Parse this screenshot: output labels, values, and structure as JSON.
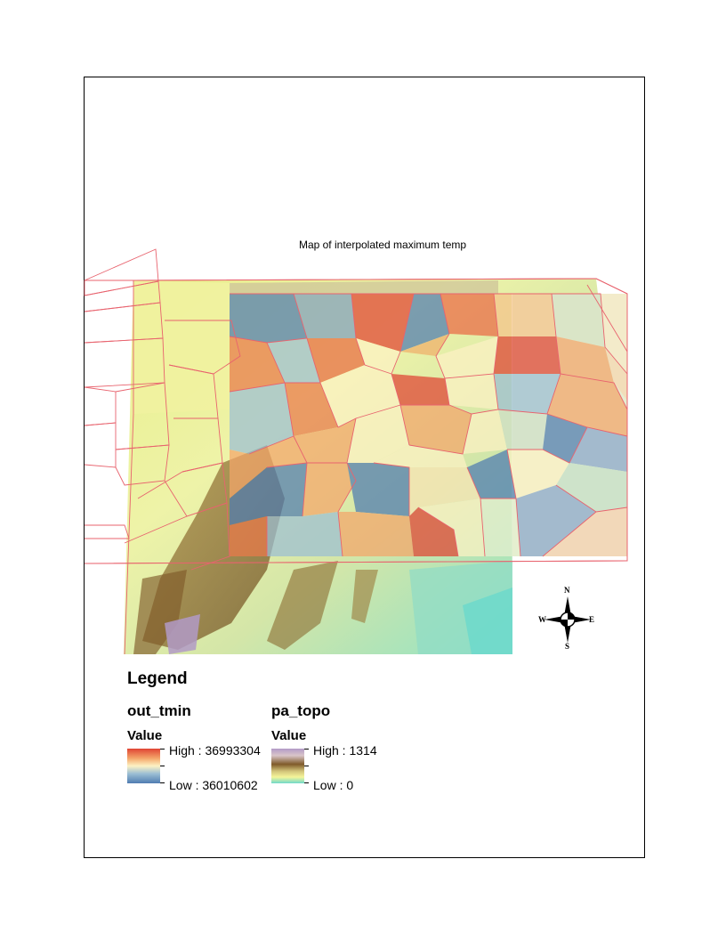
{
  "map": {
    "title": "Map of interpolated maximum temp"
  },
  "legend": {
    "title": "Legend",
    "layers": [
      {
        "name": "out_tmin",
        "value_label": "Value",
        "high_label": "High : 36993304",
        "low_label": "Low : 36010602",
        "ramp_colors": [
          "#e04433",
          "#f4a66a",
          "#fdf2c4",
          "#9cbfd4",
          "#4f7cb1"
        ]
      },
      {
        "name": "pa_topo",
        "value_label": "Value",
        "high_label": "High : 1314",
        "low_label": "Low : 0",
        "ramp_colors": [
          "#b29ac7",
          "#7f5a2a",
          "#f5f59a",
          "#6fd9cb"
        ]
      }
    ]
  },
  "north_arrow": {
    "n": "N",
    "s": "S",
    "e": "E",
    "w": "W"
  },
  "colors": {
    "county_boundary": "#e8636e",
    "frame": "#000000"
  }
}
